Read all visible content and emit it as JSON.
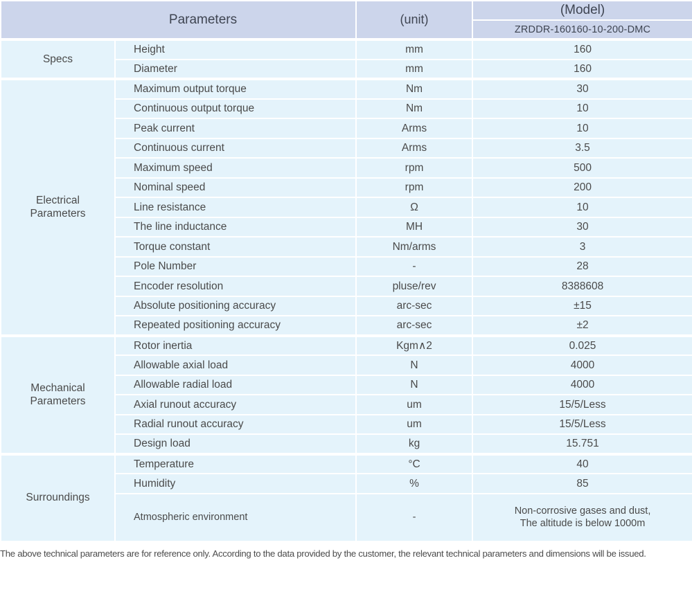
{
  "colors": {
    "header_bg": "#ccd5eb",
    "cell_bg": "#e4f3fb",
    "separator": "#ffffff",
    "text": "#4a4a4a",
    "header_text": "#3f4552"
  },
  "table": {
    "header": {
      "parameters_label": "Parameters",
      "unit_label": "(unit)",
      "model_label": "(Model)",
      "model_value": "ZRDDR-160160-10-200-DMC"
    },
    "sections": [
      {
        "name": "Specs",
        "rows": [
          {
            "param": "Height",
            "unit": "mm",
            "value": "160"
          },
          {
            "param": "Diameter",
            "unit": "mm",
            "value": "160"
          }
        ]
      },
      {
        "name": "Electrical\nParameters",
        "rows": [
          {
            "param": "Maximum output torque",
            "unit": "Nm",
            "value": "30"
          },
          {
            "param": "Continuous output torque",
            "unit": "Nm",
            "value": "10"
          },
          {
            "param": "Peak current",
            "unit": "Arms",
            "value": "10"
          },
          {
            "param": "Continuous current",
            "unit": "Arms",
            "value": "3.5"
          },
          {
            "param": "Maximum speed",
            "unit": "rpm",
            "value": "500"
          },
          {
            "param": "Nominal speed",
            "unit": "rpm",
            "value": "200"
          },
          {
            "param": "Line resistance",
            "unit": "Ω",
            "value": "10"
          },
          {
            "param": "The line inductance",
            "unit": "MH",
            "value": "30"
          },
          {
            "param": "Torque constant",
            "unit": "Nm/arms",
            "value": "3"
          },
          {
            "param": "Pole Number",
            "unit": "-",
            "value": "28"
          },
          {
            "param": "Encoder resolution",
            "unit": "pluse/rev",
            "value": "8388608"
          },
          {
            "param": "Absolute positioning accuracy",
            "unit": "arc-sec",
            "value": "±15"
          },
          {
            "param": "Repeated positioning accuracy",
            "unit": "arc-sec",
            "value": "±2"
          }
        ]
      },
      {
        "name": "Mechanical\nParameters",
        "rows": [
          {
            "param": "Rotor inertia",
            "unit": "Kgm∧2",
            "value": "0.025"
          },
          {
            "param": "Allowable axial load",
            "unit": "N",
            "value": "4000"
          },
          {
            "param": "Allowable radial load",
            "unit": "N",
            "value": "4000"
          },
          {
            "param": "Axial runout accuracy",
            "unit": "um",
            "value": "15/5/Less"
          },
          {
            "param": "Radial runout accuracy",
            "unit": "um",
            "value": "15/5/Less"
          },
          {
            "param": "Design load",
            "unit": "kg",
            "value": "15.751"
          }
        ]
      },
      {
        "name": "Surroundings",
        "rows": [
          {
            "param": "Temperature",
            "unit": "°C",
            "value": "40"
          },
          {
            "param": "Humidity",
            "unit": "%",
            "value": "85"
          },
          {
            "param": "Atmospheric environment",
            "unit": "-",
            "value": "Non-corrosive gases and dust,\nThe altitude is below 1000m"
          }
        ]
      }
    ]
  },
  "footnote": "The above technical parameters are for reference only. According to the data provided by the customer, the relevant technical parameters and dimensions will be issued."
}
